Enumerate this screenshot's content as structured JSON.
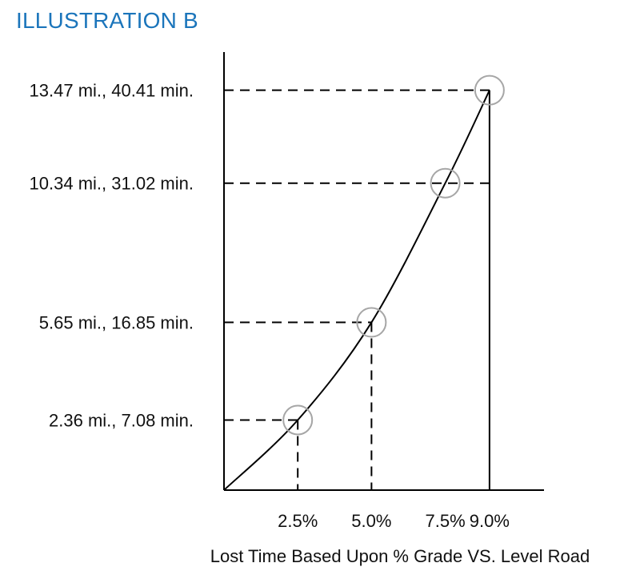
{
  "page": {
    "title": "ILLUSTRATION B",
    "title_color": "#1b75bb"
  },
  "chart_data": {
    "type": "line",
    "title": "ILLUSTRATION B",
    "xlabel": "Lost Time Based Upon % Grade VS. Level Road",
    "x_tick_labels": [
      "2.5%",
      "5.0%",
      "7.5%",
      "9.0%"
    ],
    "x_ticks": [
      2.5,
      5.0,
      7.5,
      9.0
    ],
    "xlim": [
      0,
      11.1
    ],
    "ylim": [
      0,
      14.95
    ],
    "curve": {
      "x": [
        0,
        2.5,
        5.0,
        7.5,
        9.0
      ],
      "y": [
        0,
        2.36,
        5.65,
        10.34,
        13.47
      ]
    },
    "points": [
      {
        "grade": 2.5,
        "miles": 2.36,
        "minutes": 7.08,
        "label": "2.36 mi., 7.08 min."
      },
      {
        "grade": 5.0,
        "miles": 5.65,
        "minutes": 16.85,
        "label": "5.65 mi., 16.85 min."
      },
      {
        "grade": 7.5,
        "miles": 10.34,
        "minutes": 31.02,
        "label": "10.34 mi., 31.02 min."
      },
      {
        "grade": 9.0,
        "miles": 13.47,
        "minutes": 40.41,
        "label": "13.47 mi., 40.41 min."
      }
    ],
    "grid": false,
    "colors": {
      "line": "#000000",
      "marker": "#a6a6a6",
      "text": "#111111"
    }
  }
}
